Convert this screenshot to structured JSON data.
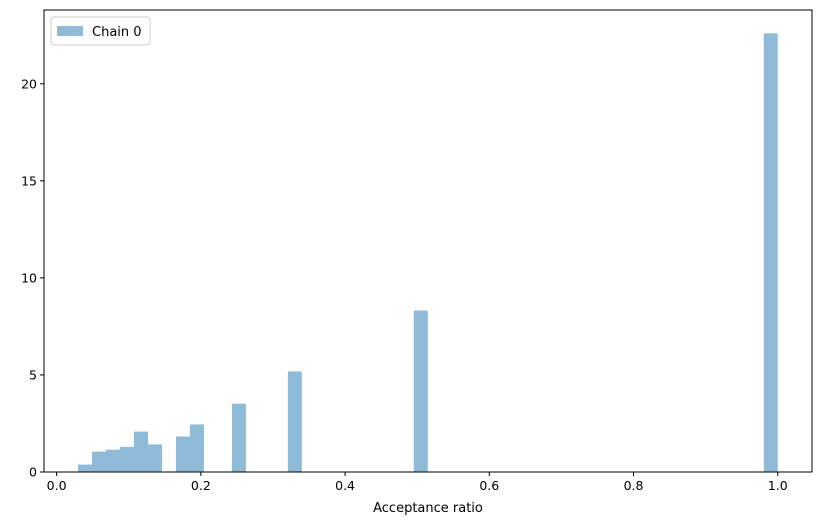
{
  "chart_data": {
    "type": "bar",
    "subtype": "histogram",
    "xlabel": "Acceptance ratio",
    "ylabel": "",
    "title": "",
    "xlim": [
      -0.0175,
      1.0475
    ],
    "ylim": [
      0,
      23.8
    ],
    "xticks": [
      0.0,
      0.2,
      0.4,
      0.6,
      0.8,
      1.0
    ],
    "xtick_labels": [
      "0.0",
      "0.2",
      "0.4",
      "0.6",
      "0.8",
      "1.0"
    ],
    "yticks": [
      0,
      5,
      10,
      15,
      20
    ],
    "ytick_labels": [
      "0",
      "5",
      "10",
      "15",
      "20"
    ],
    "grid": false,
    "legend": {
      "position": "top-left",
      "entries": [
        "Chain 0"
      ]
    },
    "series": [
      {
        "name": "Chain 0",
        "color": "#1f77b4",
        "opacity": 0.5,
        "bins": [
          {
            "x0": 0.0297,
            "x1": 0.0491,
            "value": 0.38
          },
          {
            "x0": 0.0491,
            "x1": 0.0685,
            "value": 1.05
          },
          {
            "x0": 0.0685,
            "x1": 0.0879,
            "value": 1.15
          },
          {
            "x0": 0.0879,
            "x1": 0.1073,
            "value": 1.3
          },
          {
            "x0": 0.1073,
            "x1": 0.1267,
            "value": 2.08
          },
          {
            "x0": 0.1267,
            "x1": 0.1461,
            "value": 1.42
          },
          {
            "x0": 0.1655,
            "x1": 0.1849,
            "value": 1.83
          },
          {
            "x0": 0.1849,
            "x1": 0.2043,
            "value": 2.45
          },
          {
            "x0": 0.2431,
            "x1": 0.2625,
            "value": 3.52
          },
          {
            "x0": 0.3207,
            "x1": 0.3401,
            "value": 5.18
          },
          {
            "x0": 0.4953,
            "x1": 0.5147,
            "value": 8.32
          },
          {
            "x0": 0.9806,
            "x1": 1.0,
            "value": 22.6
          }
        ]
      }
    ]
  }
}
